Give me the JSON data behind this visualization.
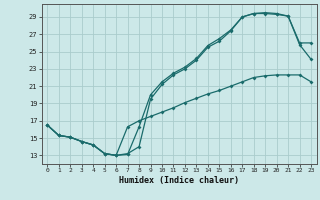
{
  "xlabel": "Humidex (Indice chaleur)",
  "background_color": "#cce8e8",
  "grid_color": "#aacccc",
  "line_color": "#1a6b6b",
  "xlim": [
    -0.5,
    23.5
  ],
  "ylim": [
    12.0,
    30.5
  ],
  "yticks": [
    13,
    15,
    17,
    19,
    21,
    23,
    25,
    27,
    29
  ],
  "xticks": [
    0,
    1,
    2,
    3,
    4,
    5,
    6,
    7,
    8,
    9,
    10,
    11,
    12,
    13,
    14,
    15,
    16,
    17,
    18,
    19,
    20,
    21,
    22,
    23
  ],
  "line1_x": [
    0,
    1,
    2,
    3,
    4,
    5,
    6,
    7,
    8,
    9,
    10,
    11,
    12,
    13,
    14,
    15,
    16,
    17,
    18,
    19,
    20,
    21,
    22,
    23
  ],
  "line1_y": [
    16.5,
    15.3,
    15.1,
    14.6,
    14.2,
    13.2,
    13.0,
    13.1,
    16.3,
    20.0,
    21.5,
    22.5,
    23.2,
    24.2,
    25.7,
    26.5,
    27.5,
    29.0,
    29.4,
    29.4,
    29.3,
    29.1,
    25.8,
    24.1
  ],
  "line2_x": [
    0,
    1,
    2,
    3,
    4,
    5,
    6,
    7,
    8,
    9,
    10,
    11,
    12,
    13,
    14,
    15,
    16,
    17,
    18,
    19,
    20,
    21,
    22,
    23
  ],
  "line2_y": [
    16.5,
    15.3,
    15.1,
    14.6,
    14.2,
    13.2,
    13.0,
    13.2,
    14.0,
    19.5,
    21.2,
    22.3,
    23.0,
    24.0,
    25.5,
    26.2,
    27.4,
    29.0,
    29.4,
    29.5,
    29.4,
    29.1,
    26.0,
    26.0
  ],
  "line3_x": [
    0,
    1,
    2,
    3,
    4,
    5,
    6,
    7,
    8,
    9,
    10,
    11,
    12,
    13,
    14,
    15,
    16,
    17,
    18,
    19,
    20,
    21,
    22,
    23
  ],
  "line3_y": [
    16.5,
    15.3,
    15.1,
    14.6,
    14.2,
    13.2,
    13.0,
    16.3,
    17.0,
    17.5,
    18.0,
    18.5,
    19.1,
    19.6,
    20.1,
    20.5,
    21.0,
    21.5,
    22.0,
    22.2,
    22.3,
    22.3,
    22.3,
    21.5
  ]
}
